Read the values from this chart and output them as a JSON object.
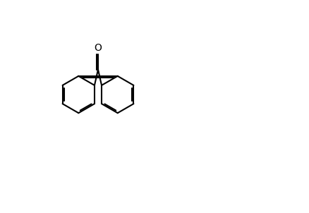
{
  "bg_color": "#ffffff",
  "bond_color": "#000000",
  "bond_lw": 1.5,
  "font_size": 10,
  "fig_w": 4.38,
  "fig_h": 3.02,
  "dpi": 100
}
